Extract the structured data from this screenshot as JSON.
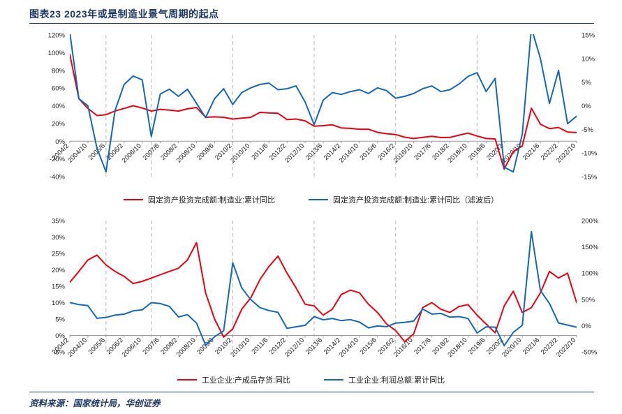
{
  "page": {
    "title": "图表23  2023年或是制造业景气周期的起点",
    "source": "资料来源：国家统计局，华创证券",
    "accent_color": "#1f3864"
  },
  "chart_data": [
    {
      "type": "line",
      "title": "",
      "legend_position": "bottom",
      "grid": "vertical-dashed-cycle-markers",
      "x": [
        "2004/2",
        "2004/6",
        "2004/10",
        "2005/2",
        "2005/6",
        "2005/10",
        "2006/2",
        "2006/6",
        "2006/10",
        "2007/2",
        "2007/6",
        "2007/10",
        "2008/2",
        "2008/6",
        "2008/10",
        "2009/2",
        "2009/6",
        "2009/10",
        "2010/2",
        "2010/6",
        "2010/10",
        "2011/2",
        "2011/6",
        "2011/10",
        "2012/2",
        "2012/6",
        "2012/10",
        "2013/2",
        "2013/6",
        "2013/10",
        "2014/2",
        "2014/6",
        "2014/10",
        "2015/2",
        "2015/6",
        "2015/10",
        "2016/2",
        "2016/6",
        "2016/10",
        "2017/2",
        "2017/6",
        "2017/10",
        "2018/2",
        "2018/6",
        "2018/10",
        "2019/2",
        "2019/6",
        "2019/10",
        "2020/2",
        "2020/6",
        "2020/10",
        "2021/2",
        "2021/6",
        "2021/10",
        "2022/2",
        "2022/6",
        "2022/10"
      ],
      "tick_every": 2,
      "left_axis": {
        "min": -40,
        "max": 120,
        "step": 20,
        "unit": "%"
      },
      "right_axis": {
        "min": -15,
        "max": 15,
        "step": 5,
        "unit": "%"
      },
      "dashed_x": [
        "2005/6",
        "2007/2",
        "2010/2",
        "2013/2",
        "2016/2",
        "2019/2"
      ],
      "series": [
        {
          "name": "固定资产投资完成额:制造业:累计同比",
          "color": "#e60014",
          "axis": "left",
          "values": [
            98,
            48,
            37,
            29,
            30,
            34,
            37,
            40,
            37.5,
            34,
            36,
            35,
            34,
            36.5,
            38,
            27,
            27.5,
            27,
            25,
            26,
            27,
            32.5,
            32,
            31.5,
            24.5,
            25,
            23,
            17,
            17.5,
            18.5,
            15,
            14.5,
            13.5,
            13.5,
            10,
            8.5,
            7.5,
            4.5,
            3,
            4.3,
            5.5,
            4.1,
            4.3,
            6.8,
            9.1,
            5.9,
            3,
            2.6,
            -31.5,
            -11.7,
            -5.3,
            37.3,
            19.2,
            14.2,
            15.5,
            10.4,
            9.7
          ]
        },
        {
          "name": "固定资产投资完成额:制造业:累计同比（滤波后）",
          "color": "#1667b1",
          "axis": "right",
          "values": [
            15.5,
            1.5,
            0,
            -9,
            -14,
            -1,
            4.5,
            6.3,
            5.5,
            -6.5,
            2.5,
            3.5,
            2,
            3.5,
            0.5,
            -2.5,
            1.5,
            3.6,
            0.3,
            2.8,
            3.8,
            4.5,
            4.8,
            3.4,
            3.6,
            4.2,
            0.8,
            -4,
            1.2,
            2.8,
            2.4,
            3,
            3.4,
            2.6,
            3.8,
            3.2,
            1.6,
            2,
            2.6,
            3.6,
            4.2,
            3,
            3.4,
            4.6,
            6.2,
            7,
            3,
            5.8,
            -13,
            -14,
            -6,
            16.5,
            10,
            0.5,
            7.5,
            -3.8,
            -2.2
          ]
        }
      ]
    },
    {
      "type": "line",
      "title": "",
      "legend_position": "bottom",
      "grid": "vertical-dashed-cycle-markers",
      "x": [
        "2004/2",
        "2004/6",
        "2004/10",
        "2005/2",
        "2005/6",
        "2005/10",
        "2006/2",
        "2006/6",
        "2006/10",
        "2007/2",
        "2007/6",
        "2007/10",
        "2008/2",
        "2008/6",
        "2008/10",
        "2009/2",
        "2009/6",
        "2009/10",
        "2010/2",
        "2010/6",
        "2010/10",
        "2011/2",
        "2011/6",
        "2011/10",
        "2012/2",
        "2012/6",
        "2012/10",
        "2013/2",
        "2013/6",
        "2013/10",
        "2014/2",
        "2014/6",
        "2014/10",
        "2015/2",
        "2015/6",
        "2015/10",
        "2016/2",
        "2016/6",
        "2016/10",
        "2017/2",
        "2017/6",
        "2017/10",
        "2018/2",
        "2018/6",
        "2018/10",
        "2019/2",
        "2019/6",
        "2019/10",
        "2020/2",
        "2020/6",
        "2020/10",
        "2021/2",
        "2021/6",
        "2021/10",
        "2022/2",
        "2022/6",
        "2022/10"
      ],
      "tick_every": 2,
      "left_axis": {
        "min": -5,
        "max": 35,
        "step": 5,
        "unit": "%"
      },
      "right_axis": {
        "min": -50,
        "max": 200,
        "step": 50,
        "unit": "%"
      },
      "dashed_x": [
        "2005/6",
        "2007/2",
        "2010/2",
        "2013/2",
        "2016/2",
        "2019/2"
      ],
      "series": [
        {
          "name": "工业企业:产成品存货:同比",
          "color": "#e60014",
          "axis": "left",
          "values": [
            16.2,
            19.5,
            23,
            24.5,
            21.5,
            19.5,
            18,
            15.8,
            16.5,
            17.5,
            18.5,
            19.5,
            20.5,
            23,
            28.3,
            13,
            5,
            -0.5,
            2,
            8,
            11.5,
            17,
            21,
            24.2,
            19,
            14.5,
            9.5,
            9,
            6.2,
            8,
            12.5,
            13.8,
            13,
            9.5,
            7,
            3.5,
            1.5,
            -1.9,
            0.5,
            8.5,
            10,
            8,
            7,
            8.8,
            9.4,
            6.2,
            3.5,
            0.8,
            9,
            13.5,
            7,
            8.5,
            13,
            19.5,
            17.5,
            19,
            10
          ]
        },
        {
          "name": "工业企业:利润总额:累计同比",
          "color": "#1667b1",
          "axis": "right",
          "values": [
            44,
            40,
            38,
            14,
            15.6,
            20,
            21.8,
            28,
            30.1,
            43.8,
            42,
            36.7,
            16.5,
            20.9,
            4.9,
            -37.3,
            -21.2,
            -10,
            119.7,
            71.8,
            49.4,
            34.3,
            28.7,
            25.3,
            -5.2,
            -2.2,
            0.5,
            17.2,
            11.1,
            13.7,
            9.4,
            11.4,
            6.7,
            -4.2,
            -0.7,
            -2,
            4.8,
            6.2,
            8.6,
            31.5,
            22,
            23.3,
            16.1,
            17.2,
            13.6,
            -14,
            -2.4,
            -2.9,
            -38.3,
            -12.8,
            0.7,
            179,
            66.9,
            42.2,
            5,
            1,
            -3
          ]
        }
      ]
    }
  ]
}
